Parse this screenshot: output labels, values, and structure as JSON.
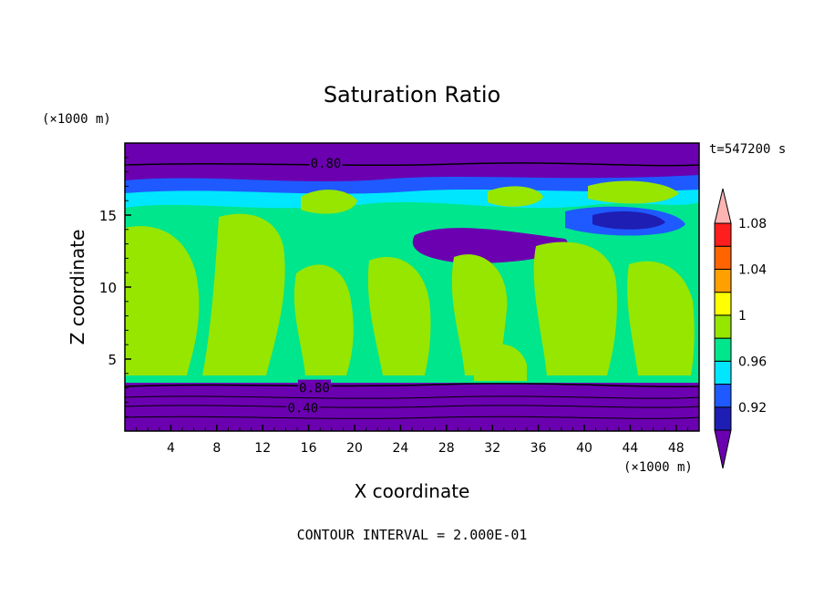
{
  "chart_data": {
    "type": "heatmap",
    "title": "Saturation Ratio",
    "xlabel": "X coordinate",
    "ylabel": "Z coordinate",
    "x_unit": "(×1000 m)",
    "y_unit": "(×1000 m)",
    "time_label": "t=547200 s",
    "footer": "CONTOUR INTERVAL = 2.000E-01",
    "xlim": [
      0,
      50
    ],
    "ylim": [
      0,
      20
    ],
    "x_ticks": [
      "4",
      "8",
      "12",
      "16",
      "20",
      "24",
      "28",
      "32",
      "36",
      "40",
      "44",
      "48"
    ],
    "y_ticks": [
      "5",
      "10",
      "15"
    ],
    "contour_labels": [
      {
        "text": "0.80",
        "x": 17.5,
        "z": 18.6
      },
      {
        "text": "0.80",
        "x": 16.5,
        "z": 3.0
      },
      {
        "text": "0.40",
        "x": 15.5,
        "z": 1.6
      }
    ],
    "colorbar": {
      "tick_labels": [
        "1.08",
        "1.04",
        "1",
        "0.96",
        "0.92"
      ],
      "levels": [
        0.92,
        0.94,
        0.96,
        0.98,
        1.0,
        1.02,
        1.04,
        1.06,
        1.08
      ],
      "colors": [
        "#6b00b0",
        "#1e1eb4",
        "#1e5aff",
        "#00e6ff",
        "#00e68c",
        "#96e600",
        "#ffff00",
        "#ffa000",
        "#ff6400",
        "#ff1e1e",
        "#ffb4b4"
      ]
    }
  }
}
